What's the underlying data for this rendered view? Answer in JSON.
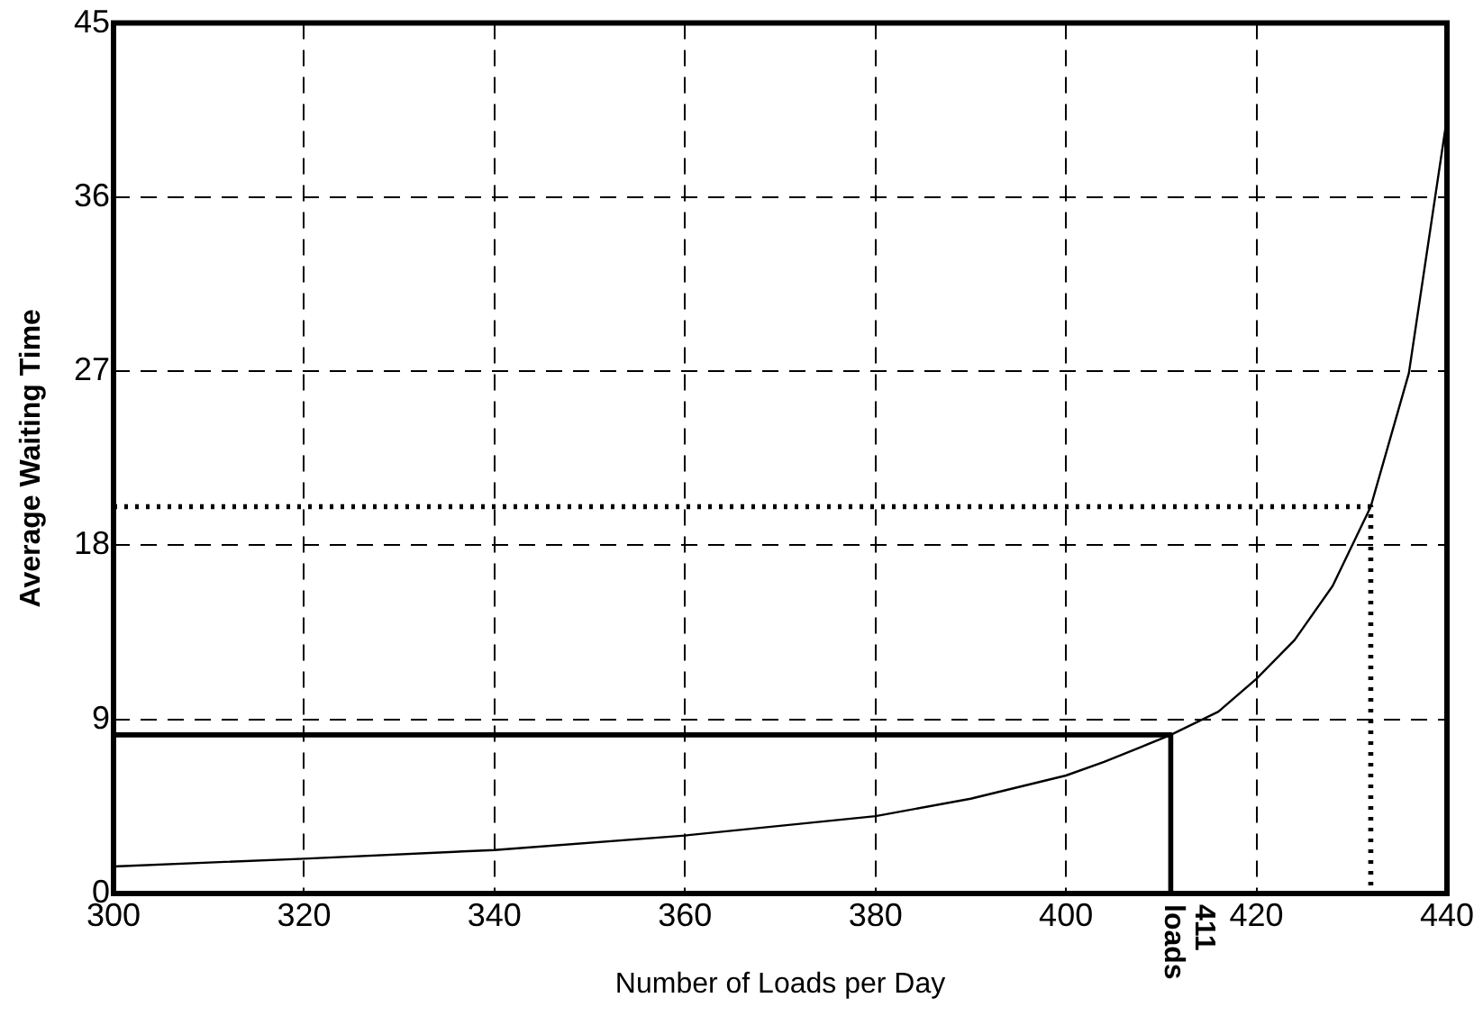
{
  "chart_data": {
    "type": "line",
    "xlabel": "Number of Loads per Day",
    "ylabel": "Average Waiting Time",
    "xlim": [
      300,
      440
    ],
    "xticks": [
      300,
      320,
      340,
      360,
      380,
      400,
      420,
      440
    ],
    "ylim": [
      0,
      45
    ],
    "yticks": [
      0,
      9,
      18,
      27,
      36,
      45
    ],
    "grid": true,
    "legend": false,
    "marker": "none",
    "series": [
      {
        "color": "#000000",
        "line_style": "solid",
        "x": [
          300,
          320,
          340,
          360,
          380,
          390,
          400,
          404,
          408,
          411,
          416,
          420,
          424,
          428,
          432,
          436,
          440
        ],
        "values": [
          1.4,
          1.8,
          2.25,
          3.0,
          4.0,
          4.9,
          6.1,
          6.8,
          7.6,
          8.2,
          9.4,
          11.1,
          13.1,
          15.9,
          20.0,
          26.9,
          40.1
        ]
      },
      {
        "color": "#000000",
        "line_style": "solid",
        "x": [
          300,
          411,
          411
        ],
        "values": [
          8.2,
          8.2,
          0
        ]
      },
      {
        "color": "#000000",
        "line_style": "dotted",
        "x": [
          300,
          432,
          432
        ],
        "values": [
          20.0,
          20.0,
          0
        ]
      }
    ],
    "annotations": [
      {
        "text": "411 loads",
        "x": 411,
        "y": 0
      }
    ]
  }
}
